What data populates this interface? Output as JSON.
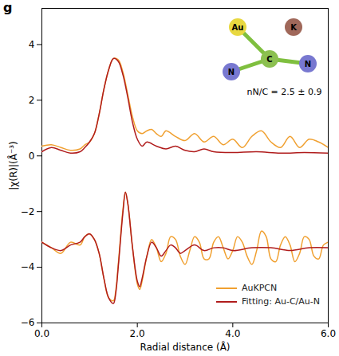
{
  "chart_data": {
    "type": "line",
    "panel_label": "g",
    "x_label": "Radial distance (Å)",
    "y_label": "|χ(R)|(Å⁻³)",
    "xlim": [
      0,
      6
    ],
    "xticks": [
      0,
      2,
      4,
      6
    ],
    "ylim": [
      -6,
      5.3
    ],
    "yticks": [
      -6,
      -4,
      -2,
      0,
      2,
      4
    ],
    "legend": "bottom-right",
    "annotation": "nN/C = 2.5 ± 0.9",
    "inset_labels": [
      "Au",
      "K",
      "C",
      "N",
      "N"
    ],
    "series": [
      {
        "name": "AuKPCN",
        "color": "#f0a030",
        "segments": [
          {
            "x": [
              0,
              0.2,
              0.4,
              0.6,
              0.8,
              0.9,
              1.0,
              1.1,
              1.2,
              1.3,
              1.4,
              1.5,
              1.6,
              1.7,
              1.8,
              1.9,
              2.0,
              2.1,
              2.2,
              2.3,
              2.4,
              2.5,
              2.6,
              2.8,
              3.0,
              3.2,
              3.4,
              3.6,
              3.8,
              4.0,
              4.2,
              4.4,
              4.6,
              4.8,
              5.0,
              5.2,
              5.4,
              5.6,
              5.8,
              6.0
            ],
            "values": [
              0.35,
              0.4,
              0.3,
              0.2,
              0.25,
              0.4,
              0.5,
              0.8,
              1.5,
              2.4,
              3.1,
              3.5,
              3.45,
              3.0,
              2.2,
              1.4,
              0.9,
              0.8,
              0.9,
              0.95,
              0.8,
              0.7,
              0.9,
              0.7,
              0.55,
              0.8,
              0.5,
              0.7,
              0.4,
              0.6,
              0.3,
              0.7,
              0.9,
              0.5,
              0.3,
              0.7,
              0.3,
              0.6,
              0.5,
              0.3
            ]
          },
          {
            "x": [
              0,
              0.2,
              0.4,
              0.6,
              0.8,
              0.9,
              1.0,
              1.1,
              1.2,
              1.3,
              1.4,
              1.5,
              1.55,
              1.6,
              1.7,
              1.75,
              1.8,
              1.9,
              2.0,
              2.05,
              2.1,
              2.2,
              2.3,
              2.4,
              2.5,
              2.6,
              2.7,
              2.8,
              2.9,
              3.0,
              3.1,
              3.2,
              3.3,
              3.4,
              3.5,
              3.6,
              3.7,
              3.8,
              3.9,
              4.0,
              4.1,
              4.2,
              4.3,
              4.4,
              4.5,
              4.6,
              4.7,
              4.8,
              4.9,
              5.0,
              5.1,
              5.2,
              5.3,
              5.4,
              5.5,
              5.6,
              5.7,
              5.8,
              5.9,
              6.0
            ],
            "values": [
              -3.1,
              -3.3,
              -3.5,
              -3.1,
              -3.2,
              -2.9,
              -2.8,
              -3.0,
              -3.5,
              -4.4,
              -5.1,
              -5.2,
              -4.8,
              -3.9,
              -1.9,
              -1.3,
              -1.7,
              -3.3,
              -4.6,
              -4.8,
              -4.5,
              -3.6,
              -3.0,
              -3.3,
              -3.8,
              -3.5,
              -2.9,
              -3.0,
              -3.6,
              -3.9,
              -3.4,
              -2.9,
              -3.1,
              -3.7,
              -3.7,
              -3.1,
              -2.9,
              -3.3,
              -3.7,
              -3.4,
              -2.9,
              -3.1,
              -3.6,
              -3.9,
              -3.4,
              -2.7,
              -2.9,
              -3.7,
              -3.8,
              -3.2,
              -2.9,
              -3.2,
              -3.8,
              -3.5,
              -2.9,
              -3.0,
              -3.6,
              -3.7,
              -3.2,
              -3.1
            ]
          }
        ]
      },
      {
        "name": "Fitting: Au-C/Au-N",
        "color": "#b01c1c",
        "segments": [
          {
            "x": [
              0,
              0.2,
              0.4,
              0.6,
              0.8,
              0.9,
              1.0,
              1.1,
              1.2,
              1.3,
              1.4,
              1.5,
              1.6,
              1.7,
              1.8,
              1.9,
              2.0,
              2.1,
              2.2,
              2.4,
              2.6,
              2.8,
              3.0,
              3.2,
              3.4,
              3.6,
              4.0,
              4.5,
              5.0,
              5.5,
              6.0
            ],
            "values": [
              0.15,
              0.3,
              0.2,
              0.1,
              0.15,
              0.3,
              0.5,
              0.8,
              1.5,
              2.4,
              3.1,
              3.5,
              3.4,
              2.9,
              2.1,
              1.2,
              0.6,
              0.35,
              0.5,
              0.35,
              0.25,
              0.35,
              0.2,
              0.15,
              0.25,
              0.15,
              0.12,
              0.15,
              0.1,
              0.12,
              0.1
            ]
          },
          {
            "x": [
              0,
              0.2,
              0.4,
              0.6,
              0.8,
              0.9,
              1.0,
              1.1,
              1.2,
              1.3,
              1.4,
              1.5,
              1.55,
              1.6,
              1.7,
              1.75,
              1.8,
              1.9,
              2.0,
              2.05,
              2.1,
              2.2,
              2.3,
              2.4,
              2.5,
              2.6,
              2.7,
              2.8,
              2.9,
              3.0,
              3.2,
              3.4,
              3.6,
              3.8,
              4.0,
              4.4,
              4.8,
              5.2,
              5.6,
              6.0
            ],
            "values": [
              -3.1,
              -3.3,
              -3.4,
              -3.2,
              -3.1,
              -2.9,
              -2.8,
              -3.0,
              -3.5,
              -4.4,
              -5.1,
              -5.3,
              -4.9,
              -4.0,
              -2.0,
              -1.3,
              -1.7,
              -3.3,
              -4.5,
              -4.7,
              -4.4,
              -3.6,
              -3.1,
              -3.3,
              -3.6,
              -3.4,
              -3.2,
              -3.3,
              -3.5,
              -3.4,
              -3.2,
              -3.4,
              -3.3,
              -3.3,
              -3.4,
              -3.3,
              -3.3,
              -3.4,
              -3.3,
              -3.3
            ]
          }
        ]
      }
    ]
  }
}
